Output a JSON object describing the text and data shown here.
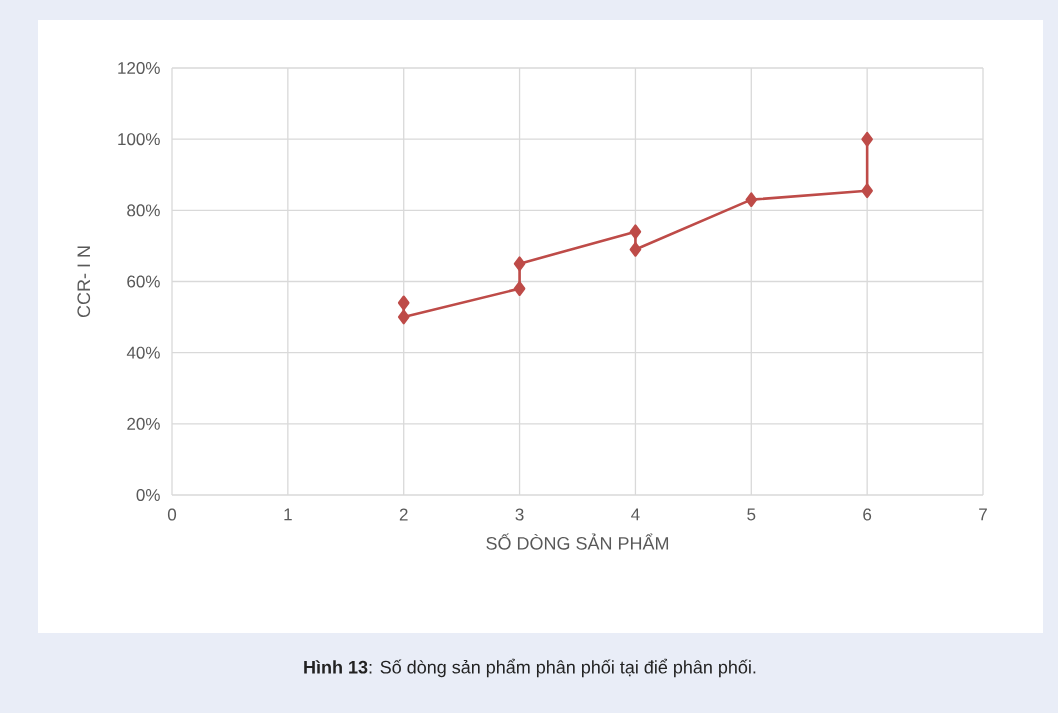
{
  "chart_data": {
    "type": "line",
    "xlabel": "SỐ DÒNG SẢN PHẨM",
    "ylabel": "CCR- I N",
    "annotations": [
      "**Hình 13**: Số dòng sản phẩm phân phối tại điể phân phối."
    ],
    "series": [
      {
        "color": "#be4b48",
        "x": [
          2,
          2,
          3,
          3,
          4,
          4,
          5,
          6,
          6
        ],
        "values": [
          54,
          50,
          58,
          65,
          74,
          69,
          83,
          85.5,
          100
        ]
      }
    ],
    "xlim": [
      0,
      7
    ],
    "xticks": [
      0,
      1,
      2,
      3,
      4,
      5,
      6,
      7
    ],
    "ylim": [
      0,
      120
    ],
    "yticks": [
      {
        "value": 0,
        "label": "0%"
      },
      {
        "value": 20,
        "label": "20%"
      },
      {
        "value": 40,
        "label": "40%"
      },
      {
        "value": 60,
        "label": "60%"
      },
      {
        "value": 80,
        "label": "80%"
      },
      {
        "value": 100,
        "label": "100%"
      },
      {
        "value": 120,
        "label": "120%"
      }
    ],
    "grid": true,
    "marker": "diamond",
    "line_style": "solid"
  }
}
